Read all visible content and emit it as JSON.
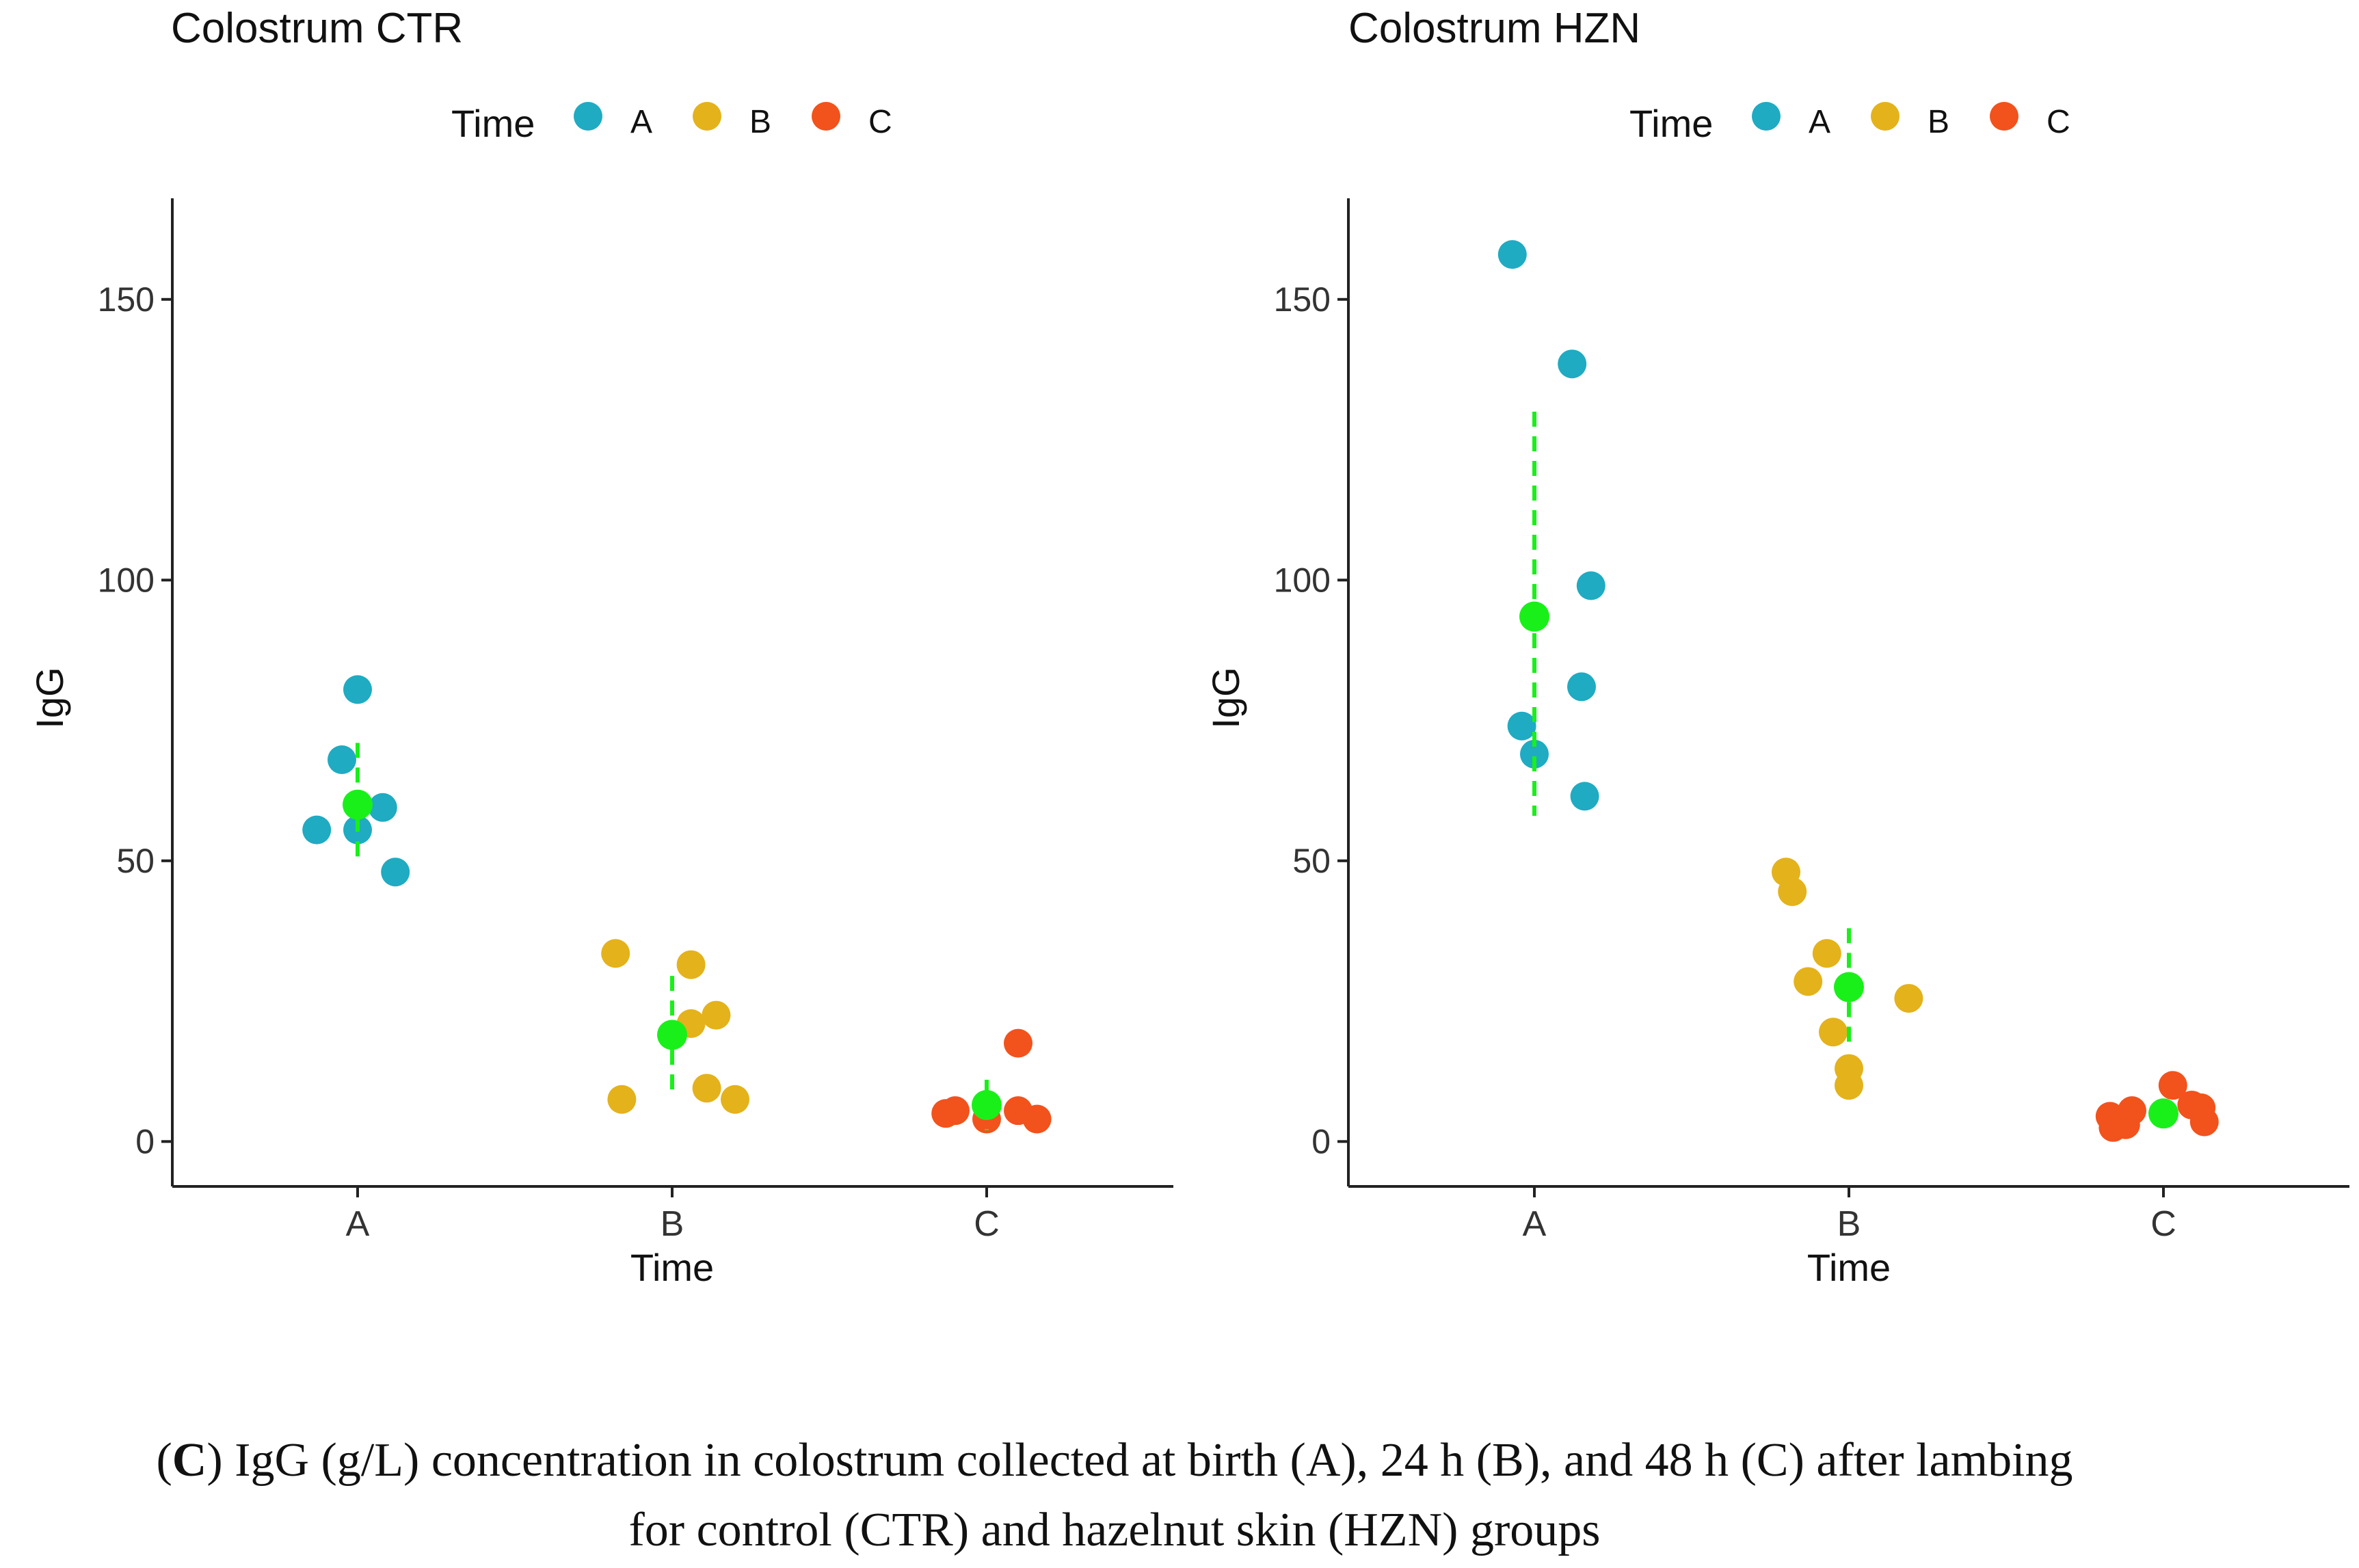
{
  "colors": {
    "A": "#1fabc2",
    "B": "#e4b21a",
    "C": "#f2521c",
    "mean": "#19f019",
    "axis": "#222222",
    "text": "#111111"
  },
  "legend": {
    "title": "Time",
    "labels": [
      "A",
      "B",
      "C"
    ]
  },
  "caption": {
    "label": "C",
    "line1": ") IgG (g/L) concentration in colostrum collected at birth (A), 24 h (B), and 48 h (C) after lambing",
    "line2": "for control (CTR) and hazelnut skin (HZN) groups"
  },
  "chart_data": [
    {
      "type": "scatter",
      "title": "Colostrum CTR",
      "xlabel": "Time",
      "ylabel": "IgG",
      "categories": [
        "A",
        "B",
        "C"
      ],
      "ylim": [
        -8,
        168
      ],
      "yticks": [
        0,
        50,
        100,
        150
      ],
      "series": [
        {
          "name": "A",
          "offsets": [
            0.0,
            -0.05,
            -0.13,
            0.0,
            0.08,
            0.12
          ],
          "values": [
            80.5,
            68.0,
            55.5,
            55.5,
            59.5,
            48.0
          ],
          "mean": 60.0,
          "err_low": 49.5,
          "err_high": 71.0
        },
        {
          "name": "B",
          "offsets": [
            -0.18,
            0.06,
            0.06,
            0.14,
            -0.16,
            0.11,
            0.2
          ],
          "values": [
            33.5,
            31.5,
            21.0,
            22.5,
            7.5,
            9.5,
            7.5
          ],
          "mean": 19.0,
          "err_low": 8.5,
          "err_high": 29.5
        },
        {
          "name": "C",
          "offsets": [
            -0.13,
            -0.1,
            0.0,
            0.1,
            0.1,
            0.16
          ],
          "values": [
            5.0,
            5.5,
            4.0,
            17.5,
            5.5,
            4.0
          ],
          "mean": 6.5,
          "err_low": 2.0,
          "err_high": 11.0
        }
      ]
    },
    {
      "type": "scatter",
      "title": "Colostrum HZN",
      "xlabel": "Time",
      "ylabel": "IgG",
      "categories": [
        "A",
        "B",
        "C"
      ],
      "ylim": [
        -8,
        168
      ],
      "yticks": [
        0,
        50,
        100,
        150
      ],
      "series": [
        {
          "name": "A",
          "offsets": [
            -0.07,
            0.12,
            0.18,
            0.15,
            -0.04,
            0.0,
            0.16
          ],
          "values": [
            158.0,
            138.5,
            99.0,
            81.0,
            74.0,
            69.0,
            61.5
          ],
          "mean": 93.5,
          "err_low": 58.0,
          "err_high": 130.0
        },
        {
          "name": "B",
          "offsets": [
            -0.2,
            -0.18,
            -0.07,
            -0.13,
            -0.05,
            0.0,
            0.0,
            0.19
          ],
          "values": [
            48.0,
            44.5,
            33.5,
            28.5,
            19.5,
            13.0,
            10.0,
            25.5
          ],
          "mean": 27.5,
          "err_low": 17.0,
          "err_high": 38.0
        },
        {
          "name": "C",
          "offsets": [
            -0.17,
            -0.16,
            -0.1,
            -0.12,
            0.03,
            0.09,
            0.12,
            0.13
          ],
          "values": [
            4.5,
            2.5,
            5.5,
            3.0,
            10.0,
            6.5,
            6.0,
            3.5
          ],
          "mean": 5.0,
          "err_low": 3.0,
          "err_high": 7.0
        }
      ]
    }
  ]
}
